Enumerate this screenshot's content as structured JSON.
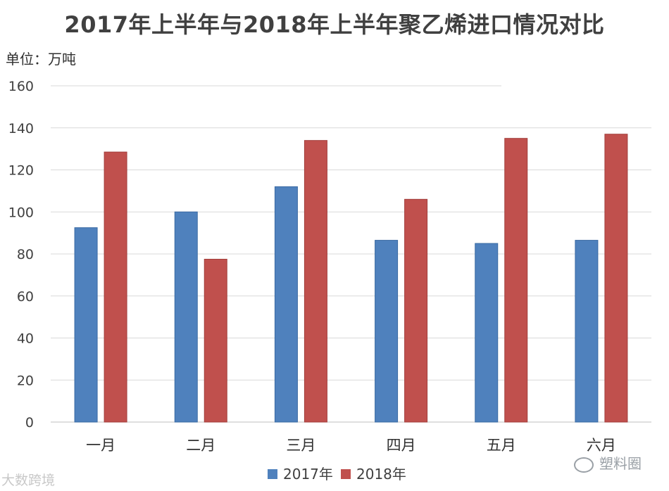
{
  "chart_data": {
    "type": "bar",
    "title": "2017年上半年与2018年上半年聚乙烯进口情况对比",
    "unit_label": "单位：万吨",
    "categories": [
      "一月",
      "二月",
      "三月",
      "四月",
      "五月",
      "六月"
    ],
    "series": [
      {
        "name": "2017年",
        "color": "#4F81BD",
        "values": [
          92.5,
          100,
          112,
          86.5,
          85,
          86.5
        ]
      },
      {
        "name": "2018年",
        "color": "#C0504D",
        "values": [
          128.5,
          77.5,
          134,
          106,
          135,
          137
        ]
      }
    ],
    "ylim": [
      0,
      160
    ],
    "yticks": [
      0,
      20,
      40,
      60,
      80,
      100,
      120,
      140,
      160
    ],
    "grid": true,
    "legend_position": "bottom"
  },
  "watermarks": {
    "left": "大数跨境",
    "right": "塑料圈"
  }
}
